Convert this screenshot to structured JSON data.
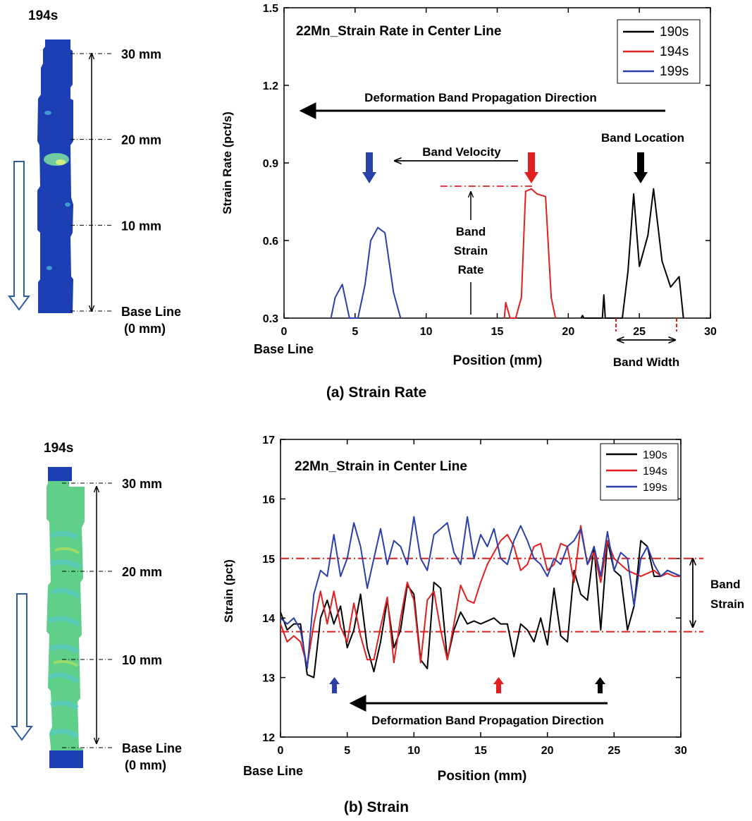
{
  "colors": {
    "s190": "#000000",
    "s194": "#e02020",
    "s199": "#2a3fa8",
    "specimen_rate": "#1d3fb3",
    "specimen_strain": "#5fcf8a",
    "arrow_outline": "#2f5d9e",
    "ref_line": "#e02020"
  },
  "panel_a": {
    "caption": "(a) Strain Rate",
    "specimen": {
      "time_label": "194s",
      "marks": [
        {
          "mm": 30,
          "label": "30 mm"
        },
        {
          "mm": 20,
          "label": "20 mm"
        },
        {
          "mm": 10,
          "label": "10 mm"
        },
        {
          "mm": 0,
          "label": "Base Line",
          "sub": "(0 mm)"
        }
      ]
    },
    "annotations": {
      "inner_title": "22Mn_Strain Rate in Center Line",
      "propagation": "Deformation Band Propagation Direction",
      "band_velocity": "Band Velocity",
      "band_location": "Band Location",
      "band_strain_rate": [
        "Band",
        "Strain",
        "Rate"
      ],
      "band_width": "Band Width",
      "base_line": "Base Line"
    }
  },
  "panel_b": {
    "caption": "(b) Strain",
    "specimen": {
      "time_label": "194s",
      "marks": [
        {
          "mm": 30,
          "label": "30 mm"
        },
        {
          "mm": 20,
          "label": "20 mm"
        },
        {
          "mm": 10,
          "label": "10 mm"
        },
        {
          "mm": 0,
          "label": "Base Line",
          "sub": "(0 mm)"
        }
      ]
    },
    "annotations": {
      "inner_title": "22Mn_Strain in Center Line",
      "propagation": "Deformation Band Propagation Direction",
      "band_strain": [
        "Band",
        "Strain"
      ],
      "base_line": "Base Line"
    }
  },
  "chart_data": [
    {
      "type": "line",
      "title": "22Mn_Strain Rate in Center Line",
      "xlabel": "Position (mm)",
      "ylabel": "Strain Rate (pct/s)",
      "xlim": [
        0,
        30
      ],
      "ylim": [
        0.3,
        1.5
      ],
      "xticks": [
        0,
        5,
        10,
        15,
        20,
        25,
        30
      ],
      "yticks": [
        0.3,
        0.6,
        0.9,
        1.2,
        1.5
      ],
      "ytick_labels": [
        "0.3",
        "0.6",
        "0.9",
        "1.2",
        "1.5"
      ],
      "legend_position": "top-right",
      "grid": false,
      "band_strain_rate_level": 0.81,
      "series": [
        {
          "name": "190s",
          "color": "#000000",
          "x": [
            20.9,
            21.0,
            21.1,
            22.4,
            22.5,
            22.6,
            23.8,
            24.2,
            24.6,
            25.0,
            25.6,
            26.0,
            26.6,
            27.2,
            27.8,
            28.1
          ],
          "y": [
            0.3,
            0.31,
            0.3,
            0.3,
            0.39,
            0.3,
            0.3,
            0.48,
            0.78,
            0.5,
            0.62,
            0.8,
            0.52,
            0.42,
            0.46,
            0.3
          ]
        },
        {
          "name": "194s",
          "color": "#e02020",
          "x": [
            15.5,
            15.6,
            15.9,
            16.3,
            16.7,
            17.0,
            17.4,
            17.8,
            18.4,
            18.8,
            19.1
          ],
          "y": [
            0.3,
            0.36,
            0.3,
            0.3,
            0.38,
            0.79,
            0.8,
            0.78,
            0.77,
            0.38,
            0.3
          ]
        },
        {
          "name": "199s",
          "color": "#2a3fa8",
          "x": [
            3.3,
            3.6,
            4.1,
            4.6,
            5.2,
            5.7,
            6.1,
            6.6,
            7.1,
            7.7,
            8.2
          ],
          "y": [
            0.3,
            0.38,
            0.43,
            0.3,
            0.3,
            0.43,
            0.6,
            0.65,
            0.63,
            0.4,
            0.3
          ]
        }
      ]
    },
    {
      "type": "line",
      "title": "22Mn_Strain in Center Line",
      "xlabel": "Position (mm)",
      "ylabel": "Strain (pct)",
      "xlim": [
        0,
        30
      ],
      "ylim": [
        12,
        17
      ],
      "xticks": [
        0,
        5,
        10,
        15,
        20,
        25,
        30
      ],
      "yticks": [
        12,
        13,
        14,
        15,
        16,
        17
      ],
      "legend_position": "top-right",
      "grid": false,
      "reference_levels": [
        15.0,
        13.77
      ],
      "series": [
        {
          "name": "190s",
          "color": "#000000",
          "x": [
            0,
            0.5,
            1,
            1.5,
            2,
            2.5,
            3,
            3.5,
            4,
            4.5,
            5,
            5.5,
            6,
            6.5,
            7,
            7.5,
            8,
            8.5,
            9,
            9.5,
            10,
            10.5,
            11,
            11.5,
            12,
            12.5,
            13,
            13.5,
            14,
            14.5,
            15,
            15.5,
            16,
            16.5,
            17,
            17.5,
            18,
            18.5,
            19,
            19.5,
            20,
            20.5,
            21,
            21.5,
            22,
            22.5,
            23,
            23.5,
            24,
            24.5,
            25,
            25.5,
            26,
            26.5,
            27,
            27.5,
            28,
            28.5,
            29,
            29.5,
            30
          ],
          "y": [
            14.1,
            13.8,
            13.9,
            13.9,
            13.05,
            13.0,
            14.0,
            14.3,
            13.9,
            14.2,
            13.5,
            13.8,
            14.4,
            13.5,
            13.1,
            13.6,
            14.3,
            13.5,
            13.8,
            14.55,
            14.4,
            13.3,
            13.15,
            14.6,
            14.5,
            13.3,
            13.8,
            14.1,
            13.9,
            13.95,
            13.9,
            13.95,
            14.0,
            13.9,
            13.9,
            13.35,
            13.9,
            13.8,
            13.6,
            14.0,
            13.55,
            14.5,
            13.7,
            13.6,
            14.8,
            14.4,
            14.3,
            15.2,
            13.8,
            15.3,
            14.8,
            14.7,
            13.8,
            14.2,
            15.3,
            15.2,
            14.7,
            14.7,
            14.8,
            14.75,
            14.7
          ]
        },
        {
          "name": "194s",
          "color": "#e02020",
          "x": [
            0,
            0.5,
            1,
            1.5,
            2,
            2.5,
            3,
            3.5,
            4,
            4.5,
            5,
            5.5,
            6,
            6.5,
            7,
            7.5,
            8,
            8.5,
            9,
            9.5,
            10,
            10.5,
            11,
            11.5,
            12,
            12.5,
            13,
            13.5,
            14,
            14.5,
            15,
            15.5,
            16,
            16.5,
            17,
            17.5,
            18,
            18.5,
            19,
            19.5,
            20,
            20.5,
            21,
            21.5,
            22,
            22.5,
            23,
            23.5,
            24,
            24.5,
            25,
            25.5,
            26,
            26.5,
            27,
            27.5,
            28,
            28.5,
            29,
            29.5,
            30
          ],
          "y": [
            13.9,
            13.6,
            13.7,
            13.6,
            13.2,
            13.9,
            14.45,
            13.9,
            14.45,
            13.85,
            13.6,
            14.25,
            13.7,
            13.3,
            13.3,
            13.85,
            14.35,
            13.25,
            14.0,
            14.6,
            14.3,
            13.25,
            14.3,
            14.45,
            13.8,
            13.3,
            13.9,
            14.55,
            14.3,
            14.25,
            14.6,
            14.9,
            15.1,
            15.3,
            15.4,
            15.2,
            14.8,
            14.9,
            15.2,
            15.25,
            14.8,
            14.9,
            15.25,
            15.2,
            14.6,
            15.55,
            14.9,
            15.1,
            14.6,
            15.3,
            15.0,
            14.9,
            14.8,
            14.75,
            14.7,
            14.75,
            14.8,
            14.7,
            14.75,
            14.7,
            14.7
          ]
        },
        {
          "name": "199s",
          "color": "#2a3fa8",
          "x": [
            0,
            0.5,
            1,
            1.5,
            2,
            2.5,
            3,
            3.5,
            4,
            4.5,
            5,
            5.5,
            6,
            6.5,
            7,
            7.5,
            8,
            8.5,
            9,
            9.5,
            10,
            10.5,
            11,
            11.5,
            12,
            12.5,
            13,
            13.5,
            14,
            14.5,
            15,
            15.5,
            16,
            16.5,
            17,
            17.5,
            18,
            18.5,
            19,
            19.5,
            20,
            20.5,
            21,
            21.5,
            22,
            22.5,
            23,
            23.5,
            24,
            24.5,
            25,
            25.5,
            26,
            26.5,
            27,
            27.5,
            28,
            28.5,
            29,
            29.5,
            30
          ],
          "y": [
            14.0,
            13.9,
            14.0,
            13.8,
            13.15,
            14.4,
            14.8,
            14.7,
            15.4,
            14.7,
            15.0,
            15.6,
            15.2,
            14.5,
            15.0,
            15.5,
            14.9,
            15.3,
            15.2,
            14.9,
            15.7,
            15.0,
            14.8,
            15.4,
            15.5,
            15.6,
            15.1,
            14.9,
            15.7,
            15.0,
            15.4,
            15.2,
            15.5,
            15.0,
            14.9,
            15.3,
            15.55,
            15.3,
            15.0,
            14.9,
            14.7,
            15.0,
            14.9,
            15.2,
            15.3,
            15.5,
            14.9,
            15.2,
            14.7,
            15.45,
            14.8,
            15.1,
            15.0,
            14.2,
            15.0,
            15.2,
            14.9,
            14.7,
            14.8,
            14.75,
            14.7
          ]
        }
      ]
    }
  ]
}
